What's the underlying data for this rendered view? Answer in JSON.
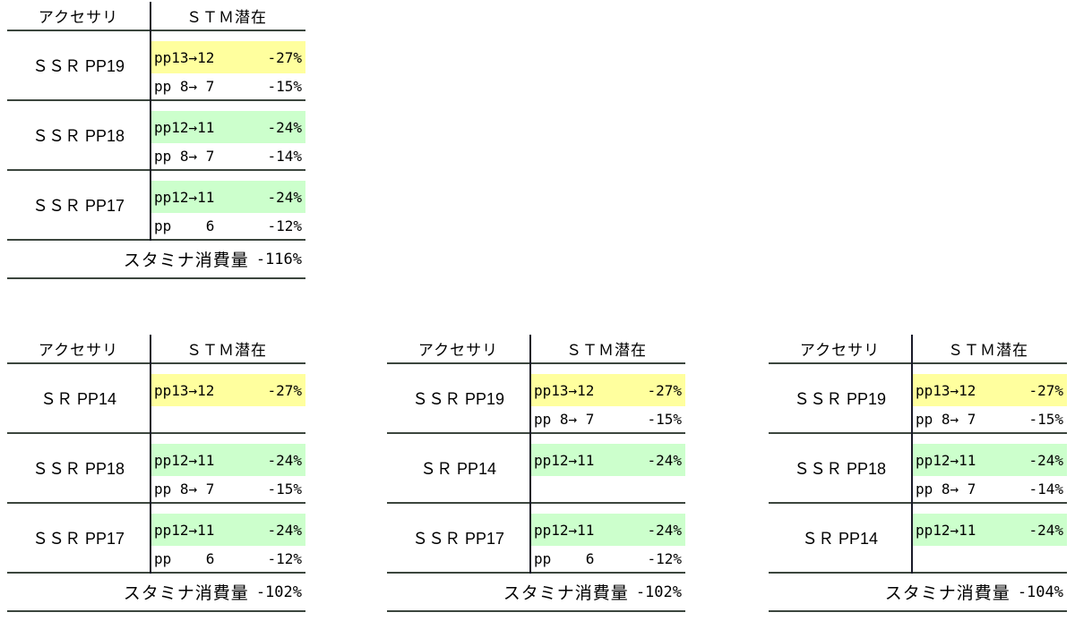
{
  "colors": {
    "yellow": "#ffff9e",
    "green": "#ccffcc"
  },
  "header": {
    "accessory": "アクセサリ",
    "stm": "ＳＴＭ潜在"
  },
  "footer_label": "スタミナ消費量",
  "tables": [
    {
      "footer_value": "-116%",
      "rows": [
        {
          "name": "ＳＳＲ PP19",
          "l1": "pp13→12",
          "l1p": "-27%",
          "hl": "yellow",
          "l2": "pp 8→ 7",
          "l2p": "-15%"
        },
        {
          "name": "ＳＳＲ PP18",
          "l1": "pp12→11",
          "l1p": "-24%",
          "hl": "green",
          "l2": "pp 8→ 7",
          "l2p": "-14%"
        },
        {
          "name": "ＳＳＲ PP17",
          "l1": "pp12→11",
          "l1p": "-24%",
          "hl": "green",
          "l2": "pp    6",
          "l2p": "-12%"
        }
      ]
    },
    {
      "footer_value": "-102%",
      "rows": [
        {
          "name": "ＳＲ PP14",
          "l1": "pp13→12",
          "l1p": "-27%",
          "hl": "yellow",
          "l2": "",
          "l2p": ""
        },
        {
          "name": "ＳＳＲ PP18",
          "l1": "pp12→11",
          "l1p": "-24%",
          "hl": "green",
          "l2": "pp 8→ 7",
          "l2p": "-15%"
        },
        {
          "name": "ＳＳＲ PP17",
          "l1": "pp12→11",
          "l1p": "-24%",
          "hl": "green",
          "l2": "pp    6",
          "l2p": "-12%"
        }
      ]
    },
    {
      "footer_value": "-102%",
      "rows": [
        {
          "name": "ＳＳＲ PP19",
          "l1": "pp13→12",
          "l1p": "-27%",
          "hl": "yellow",
          "l2": "pp 8→ 7",
          "l2p": "-15%"
        },
        {
          "name": "ＳＲ PP14",
          "l1": "pp12→11",
          "l1p": "-24%",
          "hl": "green",
          "l2": "",
          "l2p": ""
        },
        {
          "name": "ＳＳＲ PP17",
          "l1": "pp12→11",
          "l1p": "-24%",
          "hl": "green",
          "l2": "pp    6",
          "l2p": "-12%"
        }
      ]
    },
    {
      "footer_value": "-104%",
      "rows": [
        {
          "name": "ＳＳＲ PP19",
          "l1": "pp13→12",
          "l1p": "-27%",
          "hl": "yellow",
          "l2": "pp 8→ 7",
          "l2p": "-15%"
        },
        {
          "name": "ＳＳＲ PP18",
          "l1": "pp12→11",
          "l1p": "-24%",
          "hl": "green",
          "l2": "pp 8→ 7",
          "l2p": "-14%"
        },
        {
          "name": "ＳＲ PP14",
          "l1": "pp12→11",
          "l1p": "-24%",
          "hl": "green",
          "l2": "",
          "l2p": ""
        }
      ]
    }
  ]
}
